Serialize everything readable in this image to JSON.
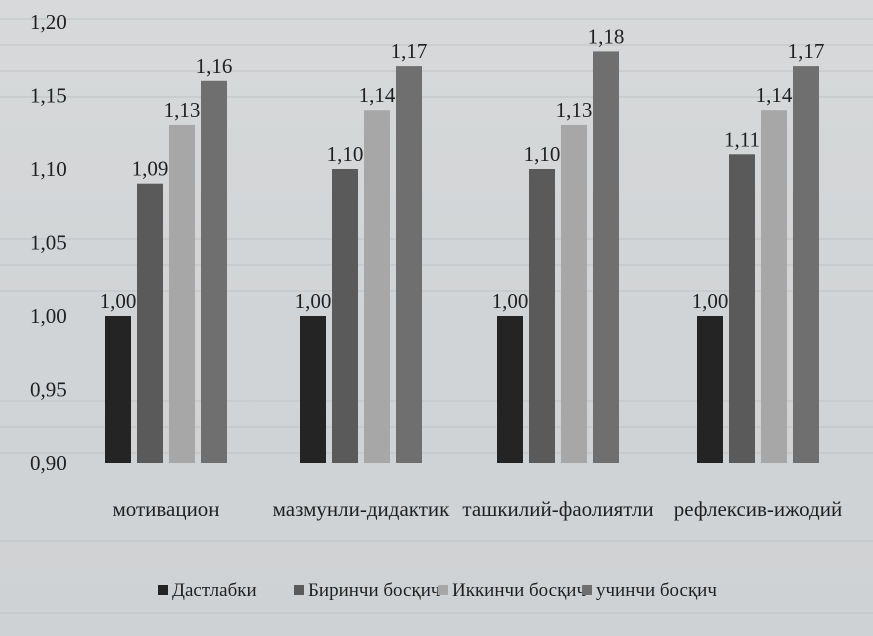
{
  "chart_data": {
    "type": "bar",
    "categories": [
      "мотивацион",
      "мазмунли-дидактик",
      "ташкилий-фаолиятли",
      "рефлексив-ижодий"
    ],
    "series": [
      {
        "name": "Дастлабки",
        "values": [
          1.0,
          1.0,
          1.0,
          1.0
        ],
        "labels": [
          "1,00",
          "1,00",
          "1,00",
          "1,00"
        ]
      },
      {
        "name": "Биринчи босқич",
        "values": [
          1.09,
          1.1,
          1.1,
          1.11
        ],
        "labels": [
          "1,09",
          "1,10",
          "1,10",
          "1,11"
        ]
      },
      {
        "name": "Иккинчи босқич",
        "values": [
          1.13,
          1.14,
          1.13,
          1.14
        ],
        "labels": [
          "1,13",
          "1,14",
          "1,13",
          "1,14"
        ]
      },
      {
        "name": "учинчи босқич",
        "values": [
          1.16,
          1.17,
          1.18,
          1.17
        ],
        "labels": [
          "1,16",
          "1,17",
          "1,18",
          "1,17"
        ]
      }
    ],
    "yticks": [
      "0,90",
      "0,95",
      "1,00",
      "1,05",
      "1,10",
      "1,15",
      "1,20"
    ],
    "ylim": [
      0.9,
      1.2
    ],
    "grid": false,
    "legend": "bottom",
    "colors": [
      "#242424",
      "#5a5a5a",
      "#a7a7a7",
      "#6f6f6f"
    ]
  }
}
